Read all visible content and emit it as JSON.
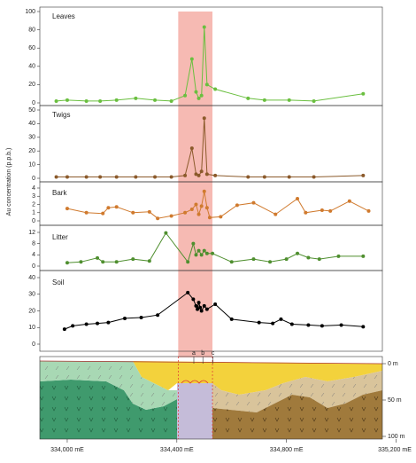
{
  "y_axis_label": "Au concentration (p.p.b.)",
  "x_axis": {
    "xlim": [
      333900,
      335150
    ],
    "xticks": [
      {
        "value": 334000,
        "label": "334,000 mE"
      },
      {
        "value": 334400,
        "label": "334,400 mE"
      },
      {
        "value": 334800,
        "label": "334,800 mE"
      },
      {
        "value": 335200,
        "label": "335,200 mE"
      }
    ]
  },
  "highlight": [
    334405,
    334530
  ],
  "chart_data": [
    {
      "type": "line",
      "title": "Leaves",
      "color": "#6abf3f",
      "ylim": [
        0,
        100
      ],
      "yticks": [
        0,
        20,
        40,
        60,
        80,
        100
      ],
      "x": [
        333960,
        334000,
        334070,
        334120,
        334180,
        334250,
        334320,
        334380,
        334430,
        334455,
        334470,
        334480,
        334490,
        334500,
        334510,
        334540,
        334660,
        334720,
        334810,
        334900,
        335080
      ],
      "values": [
        2,
        3,
        2,
        2,
        3,
        5,
        3,
        2,
        8,
        48,
        12,
        5,
        8,
        83,
        20,
        15,
        5,
        3,
        3,
        2,
        10
      ]
    },
    {
      "type": "line",
      "title": "Twigs",
      "color": "#8b5a2b",
      "ylim": [
        0,
        50
      ],
      "yticks": [
        0,
        10,
        20,
        30,
        40,
        50
      ],
      "x": [
        333960,
        334000,
        334070,
        334120,
        334180,
        334250,
        334320,
        334380,
        334430,
        334455,
        334470,
        334480,
        334490,
        334500,
        334510,
        334540,
        334660,
        334720,
        334810,
        334900,
        335080
      ],
      "values": [
        1,
        1,
        1,
        1,
        1,
        1,
        1,
        1,
        2,
        22,
        3,
        2,
        5,
        44,
        3,
        2,
        1,
        1,
        1,
        1,
        2
      ]
    },
    {
      "type": "line",
      "title": "Bark",
      "color": "#d07a2e",
      "ylim": [
        0,
        4
      ],
      "yticks": [
        0,
        1,
        2,
        3,
        4
      ],
      "x": [
        334000,
        334070,
        334130,
        334150,
        334180,
        334240,
        334300,
        334330,
        334380,
        334430,
        334455,
        334470,
        334480,
        334490,
        334500,
        334510,
        334520,
        334560,
        334620,
        334680,
        334760,
        334840,
        334870,
        334930,
        334960,
        335030,
        335100
      ],
      "values": [
        1.5,
        1.0,
        0.9,
        1.6,
        1.7,
        1.0,
        1.1,
        0.3,
        0.6,
        1.0,
        1.4,
        2.0,
        0.8,
        1.8,
        3.6,
        1.6,
        0.4,
        0.5,
        1.9,
        2.2,
        0.8,
        2.7,
        1.0,
        1.3,
        1.2,
        2.4,
        1.2
      ]
    },
    {
      "type": "line",
      "title": "Litter",
      "color": "#4f8f2f",
      "ylim": [
        0,
        12
      ],
      "yticks": [
        0,
        4,
        8,
        12
      ],
      "x": [
        334000,
        334050,
        334110,
        334130,
        334180,
        334240,
        334300,
        334360,
        334440,
        334460,
        334470,
        334480,
        334490,
        334500,
        334510,
        334530,
        334600,
        334680,
        334740,
        334800,
        334840,
        334880,
        334920,
        334990,
        335080
      ],
      "values": [
        1.2,
        1.5,
        2.9,
        1.5,
        1.5,
        2.5,
        1.8,
        11.8,
        1.5,
        8,
        4,
        5.5,
        4,
        5.5,
        4.5,
        4.5,
        1.5,
        2.5,
        1.5,
        2.5,
        4.5,
        3,
        2.5,
        3.5,
        3.5
      ]
    },
    {
      "type": "line",
      "title": "Soil",
      "color": "#000000",
      "ylim": [
        0,
        40
      ],
      "yticks": [
        0,
        10,
        20,
        30,
        40
      ],
      "x": [
        333990,
        334020,
        334070,
        334110,
        334150,
        334210,
        334270,
        334330,
        334440,
        334460,
        334470,
        334475,
        334480,
        334485,
        334490,
        334500,
        334510,
        334540,
        334600,
        334700,
        334750,
        334780,
        334820,
        334880,
        334930,
        335000,
        335080
      ],
      "values": [
        9,
        11,
        12,
        12.5,
        13,
        15.5,
        16,
        17.5,
        31,
        27,
        23,
        21,
        25,
        22,
        20,
        23,
        21,
        24,
        15,
        13,
        12.5,
        15,
        12,
        11.5,
        11,
        11.5,
        10.5
      ]
    }
  ],
  "cross_section": {
    "depth_lim": [
      0,
      100
    ],
    "depth_ticks": [
      {
        "value": 0,
        "label": "0 m"
      },
      {
        "value": 50,
        "label": "50 m"
      },
      {
        "value": 100,
        "label": "100 m"
      }
    ],
    "markers": [
      {
        "label": "a",
        "x": 334462
      },
      {
        "label": "b",
        "x": 334495
      },
      {
        "label": "c",
        "x": 334532
      }
    ]
  }
}
